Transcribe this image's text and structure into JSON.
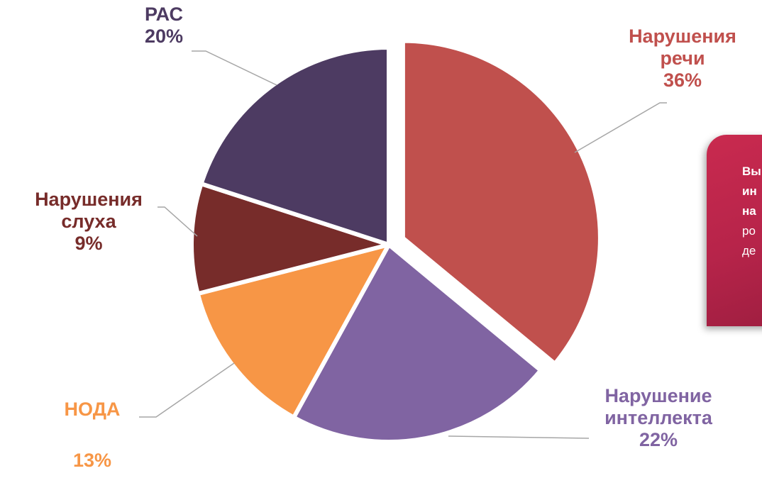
{
  "chart_data": {
    "type": "pie",
    "start_angle_deg": 0,
    "direction": "clockwise",
    "exploded": [
      "Нарушения речи"
    ],
    "slices": [
      {
        "label": [
          "Нарушения",
          "речи"
        ],
        "name": "Нарушения речи",
        "value": 36,
        "value_label": "36%",
        "color": "#C0504D"
      },
      {
        "label": [
          "Нарушение",
          "интеллекта"
        ],
        "name": "Нарушение интеллекта",
        "value": 22,
        "value_label": "22%",
        "color": "#8064A2"
      },
      {
        "label": [
          "НОДА"
        ],
        "name": "НОДА",
        "value": 13,
        "value_label": "13%",
        "color": "#F79646"
      },
      {
        "label": [
          "Нарушения",
          "слуха"
        ],
        "name": "Нарушения слуха",
        "value": 9,
        "value_label": "9%",
        "color": "#772C2A"
      },
      {
        "label": [
          "РАС"
        ],
        "name": "РАС",
        "value": 20,
        "value_label": "20%",
        "color": "#4D3B62"
      }
    ]
  },
  "side_card": {
    "lines": [
      "Вы",
      "ин",
      "на",
      "ро",
      "де"
    ],
    "bold_lines": 3,
    "color": "#C0294D"
  }
}
